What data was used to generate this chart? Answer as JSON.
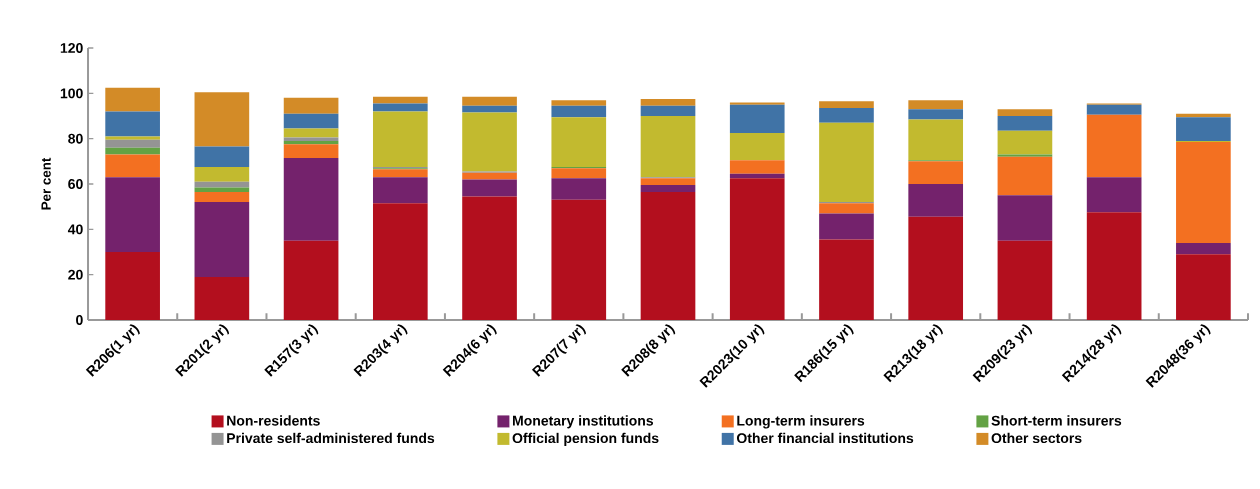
{
  "chart_data": {
    "type": "bar",
    "stacked": true,
    "ylabel": "Per cent",
    "categories": [
      "R206(1 yr)",
      "R201(2 yr)",
      "R157(3 yr)",
      "R203(4 yr)",
      "R204(6 yr)",
      "R207(7 yr)",
      "R208(8 yr)",
      "R2023(10 yr)",
      "R186(15 yr)",
      "R213(18 yr)",
      "R209(23 yr)",
      "R214(28 yr)",
      "R2048(36 yr)"
    ],
    "series": [
      {
        "name": "Non-residents",
        "color": "#b30f1e",
        "values": [
          30,
          19,
          35,
          51.5,
          54.5,
          53,
          56.5,
          62.5,
          35.5,
          45.5,
          35,
          47.5,
          29
        ]
      },
      {
        "name": "Monetary  institutions",
        "color": "#74226c",
        "values": [
          33,
          33,
          36.5,
          11.5,
          7.5,
          9.5,
          3,
          2,
          11.5,
          14.5,
          20,
          15.5,
          5
        ]
      },
      {
        "name": "Long-term insurers",
        "color": "#f37021",
        "values": [
          10,
          4.5,
          6,
          3.5,
          3,
          4.5,
          3,
          6,
          4.5,
          10,
          17,
          27.5,
          44.5
        ]
      },
      {
        "name": "Short-term insurers",
        "color": "#63a244",
        "values": [
          3,
          2,
          1.5,
          0.5,
          0,
          0.5,
          0,
          0,
          0,
          0.5,
          1,
          0,
          0
        ]
      },
      {
        "name": "Private self-administered funds",
        "color": "#949494",
        "values": [
          3.5,
          2.5,
          1.5,
          0.5,
          0.5,
          0,
          0.5,
          0,
          0.5,
          0,
          0,
          0,
          0
        ]
      },
      {
        "name": "Official pension funds",
        "color": "#c2ba2f",
        "values": [
          1.5,
          6.5,
          4,
          24.5,
          26,
          22,
          27,
          12,
          35,
          18,
          10.5,
          0,
          0.5
        ]
      },
      {
        "name": "Other financial institutions",
        "color": "#4073a6",
        "values": [
          11,
          9,
          6.5,
          3.5,
          3,
          5,
          4.5,
          12.5,
          6.5,
          4.5,
          6.5,
          4.5,
          10.5
        ]
      },
      {
        "name": "Other sectors",
        "color": "#d38b27",
        "values": [
          10.5,
          24,
          7,
          3,
          4,
          2.5,
          3,
          1,
          3,
          4,
          3,
          0.5,
          1.5
        ]
      }
    ],
    "ylim": [
      0,
      120
    ],
    "yticks": [
      0,
      20,
      40,
      60,
      80,
      100,
      120
    ],
    "grid": false,
    "legend": "bottom"
  }
}
